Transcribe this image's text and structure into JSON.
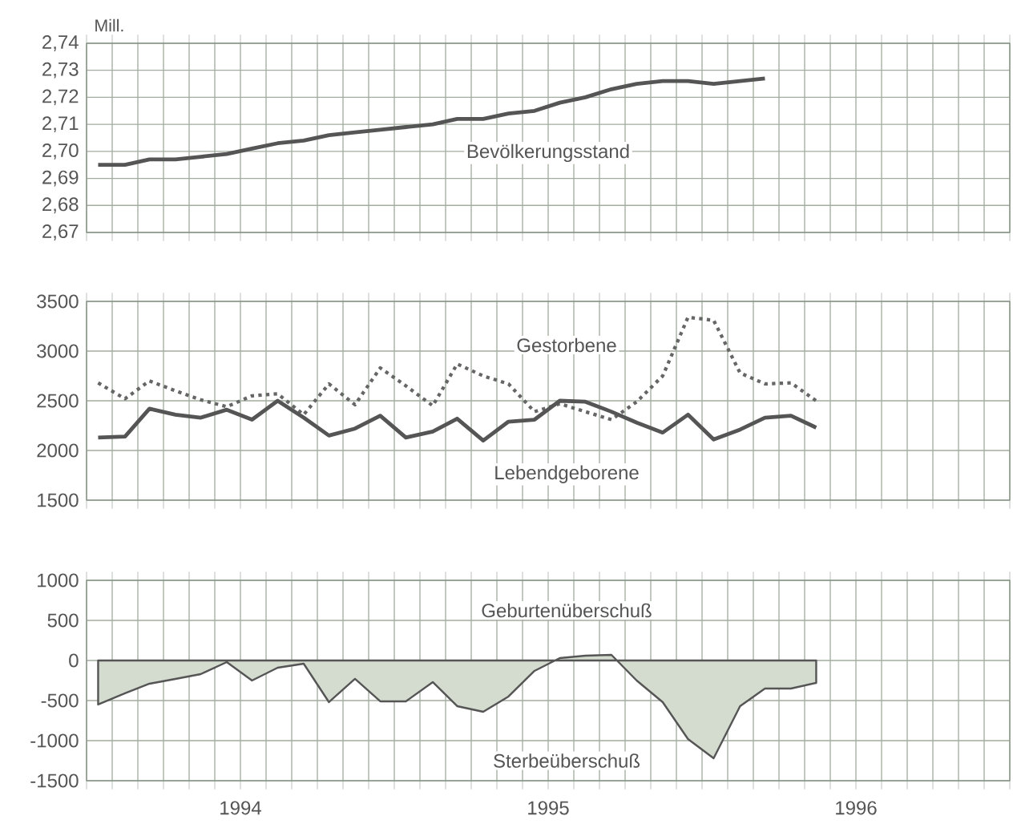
{
  "chart_data": [
    {
      "type": "line",
      "ylabel": "Mill.",
      "tick_labels": "y",
      "grid": true,
      "xlim": [
        "1994-01-01",
        "1997-01-01"
      ],
      "xticks": [
        {
          "value": "1994-01-01",
          "label": null
        },
        {
          "value": "1994-02-01",
          "label": null
        },
        {
          "value": "1994-03-01",
          "label": null
        },
        {
          "value": "1994-04-01",
          "label": null
        },
        {
          "value": "1994-05-01",
          "label": null
        },
        {
          "value": "1994-06-01",
          "label": null
        },
        {
          "value": "1994-07-01",
          "label": null
        },
        {
          "value": "1994-08-01",
          "label": null
        },
        {
          "value": "1994-09-01",
          "label": null
        },
        {
          "value": "1994-10-01",
          "label": null
        },
        {
          "value": "1994-11-01",
          "label": null
        },
        {
          "value": "1994-12-01",
          "label": null
        },
        {
          "value": "1995-01-01",
          "label": null
        },
        {
          "value": "1995-02-01",
          "label": null
        },
        {
          "value": "1995-03-01",
          "label": null
        },
        {
          "value": "1995-04-01",
          "label": null
        },
        {
          "value": "1995-05-01",
          "label": null
        },
        {
          "value": "1995-06-01",
          "label": null
        },
        {
          "value": "1995-07-01",
          "label": null
        },
        {
          "value": "1995-08-01",
          "label": null
        },
        {
          "value": "1995-09-01",
          "label": null
        },
        {
          "value": "1995-10-01",
          "label": null
        },
        {
          "value": "1995-11-01",
          "label": null
        },
        {
          "value": "1995-12-01",
          "label": null
        },
        {
          "value": "1996-01-01",
          "label": null
        },
        {
          "value": "1996-02-01",
          "label": null
        },
        {
          "value": "1996-03-01",
          "label": null
        },
        {
          "value": "1996-04-01",
          "label": null
        },
        {
          "value": "1996-05-01",
          "label": null
        },
        {
          "value": "1996-06-01",
          "label": null
        },
        {
          "value": "1996-07-01",
          "label": null
        },
        {
          "value": "1996-08-01",
          "label": null
        },
        {
          "value": "1996-09-01",
          "label": null
        },
        {
          "value": "1996-10-01",
          "label": null
        },
        {
          "value": "1996-11-01",
          "label": null
        },
        {
          "value": "1996-12-01",
          "label": null
        },
        {
          "value": "1997-01-01",
          "label": null
        }
      ],
      "ylim": [
        2.67,
        2.74
      ],
      "yticks": [
        {
          "value": 2.67,
          "label": "2,67"
        },
        {
          "value": 2.68,
          "label": "2,68"
        },
        {
          "value": 2.69,
          "label": "2,69"
        },
        {
          "value": 2.7,
          "label": "2,70"
        },
        {
          "value": 2.71,
          "label": "2,71"
        },
        {
          "value": 2.72,
          "label": "2,72"
        },
        {
          "value": 2.73,
          "label": "2,73"
        },
        {
          "value": 2.74,
          "label": "2,74"
        }
      ],
      "x": [
        "1994-01-15",
        "1994-02-15",
        "1994-03-15",
        "1994-04-15",
        "1994-05-15",
        "1994-06-15",
        "1994-07-15",
        "1994-08-15",
        "1994-09-15",
        "1994-10-15",
        "1994-11-15",
        "1994-12-15",
        "1995-01-15",
        "1995-02-15",
        "1995-03-15",
        "1995-04-15",
        "1995-05-15",
        "1995-06-15",
        "1995-07-15",
        "1995-08-15",
        "1995-09-15",
        "1995-10-15",
        "1995-11-15",
        "1995-12-15",
        "1996-01-15",
        "1996-02-15",
        "1996-03-15"
      ],
      "series": [
        {
          "name": "Bevölkerungsstand",
          "color": "#555555",
          "line_style": "solid",
          "values": [
            2.695,
            2.695,
            2.697,
            2.697,
            2.698,
            2.699,
            2.701,
            2.703,
            2.704,
            2.706,
            2.707,
            2.708,
            2.709,
            2.71,
            2.712,
            2.712,
            2.714,
            2.715,
            2.718,
            2.72,
            2.723,
            2.725,
            2.726,
            2.726,
            2.725,
            2.726,
            2.727
          ]
        }
      ]
    },
    {
      "type": "line",
      "tick_labels": "y",
      "grid": true,
      "xlim": [
        "1994-01-01",
        "1997-01-01"
      ],
      "xticks": [
        {
          "value": "1994-01-01",
          "label": null
        },
        {
          "value": "1994-02-01",
          "label": null
        },
        {
          "value": "1994-03-01",
          "label": null
        },
        {
          "value": "1994-04-01",
          "label": null
        },
        {
          "value": "1994-05-01",
          "label": null
        },
        {
          "value": "1994-06-01",
          "label": null
        },
        {
          "value": "1994-07-01",
          "label": null
        },
        {
          "value": "1994-08-01",
          "label": null
        },
        {
          "value": "1994-09-01",
          "label": null
        },
        {
          "value": "1994-10-01",
          "label": null
        },
        {
          "value": "1994-11-01",
          "label": null
        },
        {
          "value": "1994-12-01",
          "label": null
        },
        {
          "value": "1995-01-01",
          "label": null
        },
        {
          "value": "1995-02-01",
          "label": null
        },
        {
          "value": "1995-03-01",
          "label": null
        },
        {
          "value": "1995-04-01",
          "label": null
        },
        {
          "value": "1995-05-01",
          "label": null
        },
        {
          "value": "1995-06-01",
          "label": null
        },
        {
          "value": "1995-07-01",
          "label": null
        },
        {
          "value": "1995-08-01",
          "label": null
        },
        {
          "value": "1995-09-01",
          "label": null
        },
        {
          "value": "1995-10-01",
          "label": null
        },
        {
          "value": "1995-11-01",
          "label": null
        },
        {
          "value": "1995-12-01",
          "label": null
        },
        {
          "value": "1996-01-01",
          "label": null
        },
        {
          "value": "1996-02-01",
          "label": null
        },
        {
          "value": "1996-03-01",
          "label": null
        },
        {
          "value": "1996-04-01",
          "label": null
        },
        {
          "value": "1996-05-01",
          "label": null
        },
        {
          "value": "1996-06-01",
          "label": null
        },
        {
          "value": "1996-07-01",
          "label": null
        },
        {
          "value": "1996-08-01",
          "label": null
        },
        {
          "value": "1996-09-01",
          "label": null
        },
        {
          "value": "1996-10-01",
          "label": null
        },
        {
          "value": "1996-11-01",
          "label": null
        },
        {
          "value": "1996-12-01",
          "label": null
        },
        {
          "value": "1997-01-01",
          "label": null
        }
      ],
      "ylim": [
        1500,
        3500
      ],
      "yticks": [
        1500,
        2000,
        2500,
        3000,
        3500
      ],
      "x": [
        "1994-01-15",
        "1994-02-15",
        "1994-03-15",
        "1994-04-15",
        "1994-05-15",
        "1994-06-15",
        "1994-07-15",
        "1994-08-15",
        "1994-09-15",
        "1994-10-15",
        "1994-11-15",
        "1994-12-15",
        "1995-01-15",
        "1995-02-15",
        "1995-03-15",
        "1995-04-15",
        "1995-05-15",
        "1995-06-15",
        "1995-07-15",
        "1995-08-15",
        "1995-09-15",
        "1995-10-15",
        "1995-11-15",
        "1995-12-15",
        "1996-01-15",
        "1996-02-15",
        "1996-03-15",
        "1996-04-15",
        "1996-05-15"
      ],
      "series": [
        {
          "name": "Gestorbene",
          "color": "#666666",
          "line_style": "dotted",
          "values": [
            2680,
            2520,
            2700,
            2600,
            2510,
            2440,
            2550,
            2570,
            2360,
            2670,
            2460,
            2830,
            2650,
            2450,
            2870,
            2750,
            2670,
            2390,
            2470,
            2390,
            2310,
            2490,
            2750,
            3340,
            3310,
            2780,
            2670,
            2680,
            2500
          ]
        },
        {
          "name": "Lebendgeborene",
          "color": "#555555",
          "line_style": "solid",
          "values": [
            2130,
            2140,
            2420,
            2360,
            2330,
            2410,
            2310,
            2500,
            2330,
            2150,
            2220,
            2350,
            2130,
            2190,
            2320,
            2100,
            2290,
            2310,
            2500,
            2490,
            2390,
            2280,
            2180,
            2360,
            2110,
            2210,
            2330,
            2350,
            2230
          ]
        }
      ]
    },
    {
      "type": "area",
      "grid": true,
      "annotations": [
        "Geburtenüberschuß",
        "Sterbeüberschuß"
      ],
      "xlim": [
        "1994-01-01",
        "1997-01-01"
      ],
      "xticks": [
        {
          "value": "1994-01-01",
          "label": null
        },
        {
          "value": "1994-02-01",
          "label": null
        },
        {
          "value": "1994-03-01",
          "label": null
        },
        {
          "value": "1994-04-01",
          "label": null
        },
        {
          "value": "1994-05-01",
          "label": null
        },
        {
          "value": "1994-06-01",
          "label": null
        },
        {
          "value": "1994-07-01",
          "label": "1994"
        },
        {
          "value": "1994-08-01",
          "label": null
        },
        {
          "value": "1994-09-01",
          "label": null
        },
        {
          "value": "1994-10-01",
          "label": null
        },
        {
          "value": "1994-11-01",
          "label": null
        },
        {
          "value": "1994-12-01",
          "label": null
        },
        {
          "value": "1995-01-01",
          "label": null
        },
        {
          "value": "1995-02-01",
          "label": null
        },
        {
          "value": "1995-03-01",
          "label": null
        },
        {
          "value": "1995-04-01",
          "label": null
        },
        {
          "value": "1995-05-01",
          "label": null
        },
        {
          "value": "1995-06-01",
          "label": null
        },
        {
          "value": "1995-07-01",
          "label": "1995"
        },
        {
          "value": "1995-08-01",
          "label": null
        },
        {
          "value": "1995-09-01",
          "label": null
        },
        {
          "value": "1995-10-01",
          "label": null
        },
        {
          "value": "1995-11-01",
          "label": null
        },
        {
          "value": "1995-12-01",
          "label": null
        },
        {
          "value": "1996-01-01",
          "label": null
        },
        {
          "value": "1996-02-01",
          "label": null
        },
        {
          "value": "1996-03-01",
          "label": null
        },
        {
          "value": "1996-04-01",
          "label": null
        },
        {
          "value": "1996-05-01",
          "label": null
        },
        {
          "value": "1996-06-01",
          "label": null
        },
        {
          "value": "1996-07-01",
          "label": "1996"
        },
        {
          "value": "1996-08-01",
          "label": null
        },
        {
          "value": "1996-09-01",
          "label": null
        },
        {
          "value": "1996-10-01",
          "label": null
        },
        {
          "value": "1996-11-01",
          "label": null
        },
        {
          "value": "1996-12-01",
          "label": null
        },
        {
          "value": "1997-01-01",
          "label": null
        }
      ],
      "ylim": [
        -1500,
        1000
      ],
      "yticks": [
        -1500,
        -1000,
        -500,
        0,
        500,
        1000
      ],
      "x": [
        "1994-01-15",
        "1994-02-15",
        "1994-03-15",
        "1994-04-15",
        "1994-05-15",
        "1994-06-15",
        "1994-07-15",
        "1994-08-15",
        "1994-09-15",
        "1994-10-15",
        "1994-11-15",
        "1994-12-15",
        "1995-01-15",
        "1995-02-15",
        "1995-03-15",
        "1995-04-15",
        "1995-05-15",
        "1995-06-15",
        "1995-07-15",
        "1995-08-15",
        "1995-09-15",
        "1995-10-15",
        "1995-11-15",
        "1995-12-15",
        "1996-01-15",
        "1996-02-15",
        "1996-03-15",
        "1996-04-15",
        "1996-05-15"
      ],
      "series": [
        {
          "color": "#d4dbcf",
          "values": [
            -550,
            -410,
            -290,
            -230,
            -170,
            -20,
            -250,
            -90,
            -40,
            -520,
            -230,
            -510,
            -510,
            -270,
            -570,
            -640,
            -450,
            -130,
            30,
            60,
            70,
            -250,
            -520,
            -980,
            -1220,
            -570,
            -350,
            -350,
            -280
          ]
        }
      ]
    }
  ]
}
